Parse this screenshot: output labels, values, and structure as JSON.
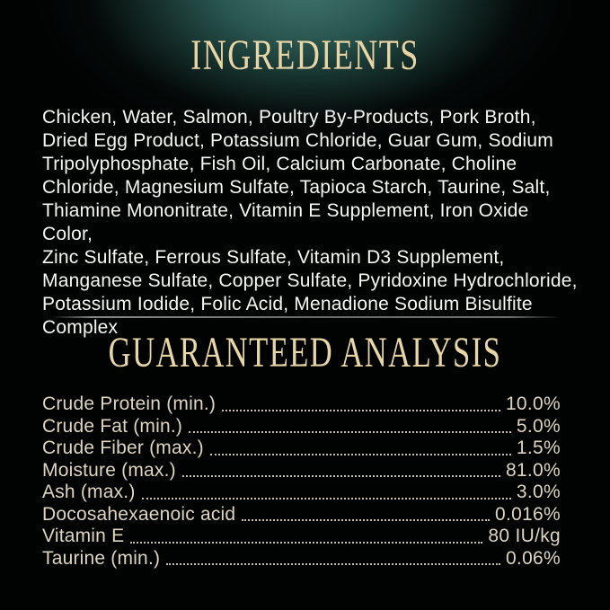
{
  "colors": {
    "background": "#010202",
    "glow_teal": "#41756c",
    "heading_gold": "#e9d6a6",
    "ingredients_text": "#f7f7f4",
    "analysis_text": "#ded4c0",
    "divider_gray": "#7d7d7d"
  },
  "ingredients": {
    "title": "INGREDIENTS",
    "lines": [
      "Chicken, Water, Salmon, Poultry By-Products, Pork Broth,",
      "Dried Egg Product, Potassium Chloride, Guar Gum, Sodium",
      "Tripolyphosphate, Fish Oil, Calcium Carbonate, Choline",
      "Chloride, Magnesium Sulfate, Tapioca Starch, Taurine, Salt,",
      "Thiamine Mononitrate, Vitamin E Supplement, Iron Oxide Color,",
      "Zinc Sulfate, Ferrous Sulfate, Vitamin D3 Supplement,",
      "Manganese Sulfate, Copper Sulfate, Pyridoxine Hydrochloride,",
      "Potassium Iodide, Folic Acid, Menadione Sodium Bisulfite",
      "Complex"
    ]
  },
  "guaranteed_analysis": {
    "title": "GUARANTEED ANALYSIS",
    "rows": [
      {
        "label": "Crude Protein (min.)",
        "value": "10.0%"
      },
      {
        "label": "Crude Fat (min.)",
        "value": "5.0%"
      },
      {
        "label": "Crude Fiber (max.)",
        "value": "1.5%"
      },
      {
        "label": "Moisture (max.)",
        "value": "81.0%"
      },
      {
        "label": "Ash (max.)",
        "value": "3.0%"
      },
      {
        "label": "Docosahexaenoic acid",
        "value": "0.016%"
      },
      {
        "label": "Vitamin E",
        "value": "80 IU/kg"
      },
      {
        "label": "Taurine (min.)",
        "value": "0.06%"
      }
    ]
  }
}
